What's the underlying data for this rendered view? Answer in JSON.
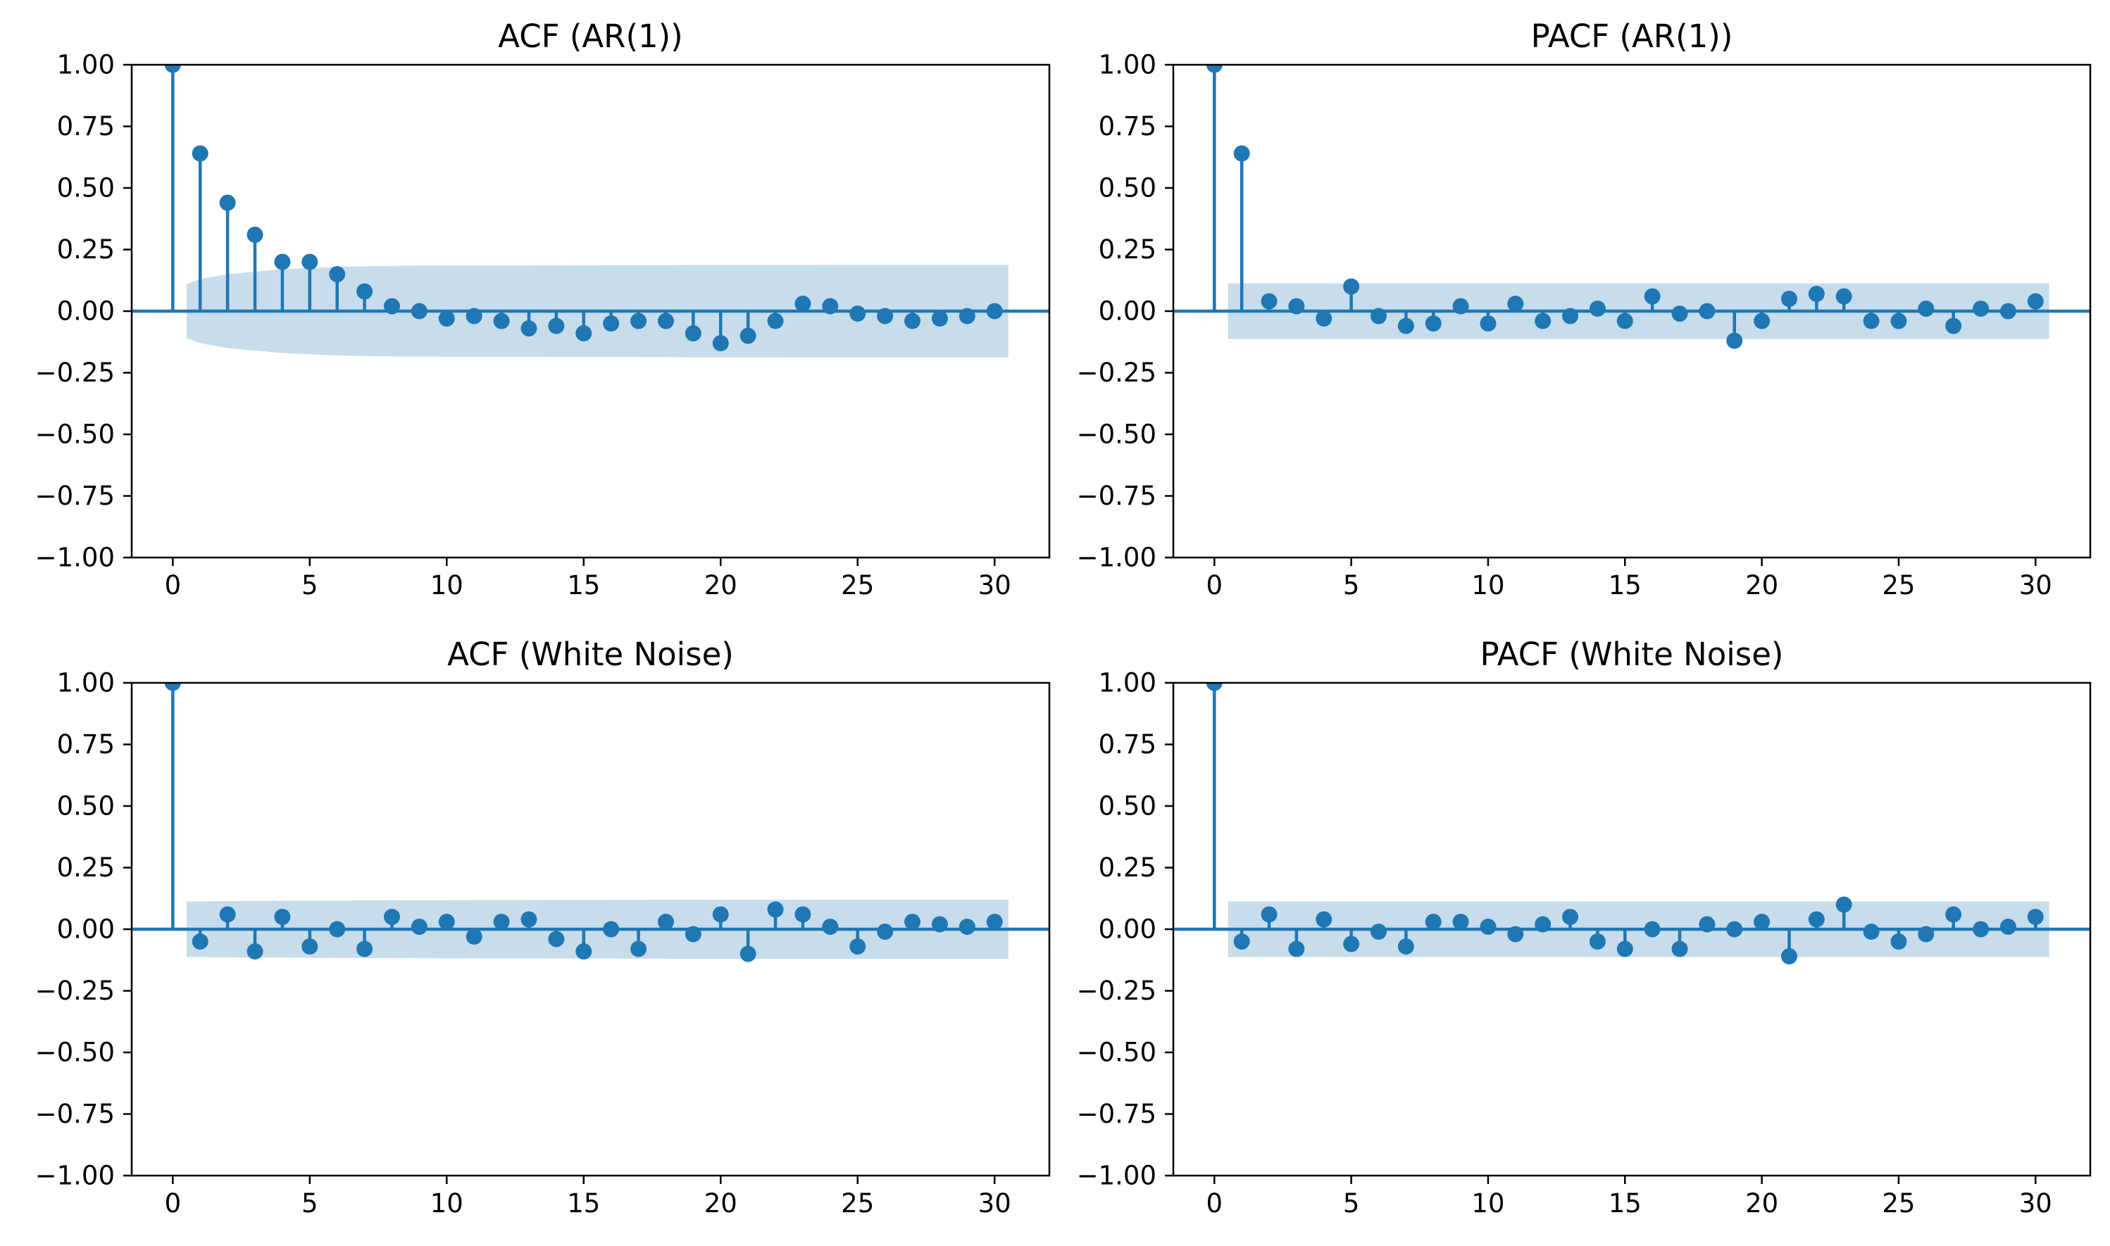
{
  "colors": {
    "series": "#1f77b4",
    "band": "#1f77b4",
    "axes": "#000000",
    "background": "#ffffff"
  },
  "chart_data": [
    {
      "type": "stem",
      "title": "ACF (AR(1))",
      "xlim": [
        -1.5,
        32
      ],
      "ylim": [
        -1.0,
        1.0
      ],
      "xticks": [
        0,
        5,
        10,
        15,
        20,
        25,
        30
      ],
      "yticks": [
        1.0,
        0.75,
        0.5,
        0.25,
        0.0,
        -0.25,
        -0.5,
        -0.75,
        -1.0
      ],
      "ytick_labels": [
        "1.00",
        "0.75",
        "0.50",
        "0.25",
        "0.00",
        "−0.25",
        "−0.50",
        "−0.75",
        "−1.00"
      ],
      "xtick_labels": [
        "0",
        "5",
        "10",
        "15",
        "20",
        "25",
        "30"
      ],
      "x": [
        0,
        1,
        2,
        3,
        4,
        5,
        6,
        7,
        8,
        9,
        10,
        11,
        12,
        13,
        14,
        15,
        16,
        17,
        18,
        19,
        20,
        21,
        22,
        23,
        24,
        25,
        26,
        27,
        28,
        29,
        30
      ],
      "values": [
        1.0,
        0.64,
        0.44,
        0.31,
        0.2,
        0.2,
        0.15,
        0.08,
        0.02,
        0.0,
        -0.03,
        -0.02,
        -0.04,
        -0.07,
        -0.06,
        -0.09,
        -0.05,
        -0.04,
        -0.04,
        -0.09,
        -0.13,
        -0.1,
        -0.04,
        0.03,
        0.02,
        -0.01,
        -0.02,
        -0.04,
        -0.03,
        -0.02,
        0.0
      ],
      "confidence_band": {
        "x": [
          0.5,
          1,
          2,
          3,
          4,
          5,
          6,
          7,
          8,
          10,
          15,
          20,
          25,
          30.5
        ],
        "upper": [
          0.11,
          0.13,
          0.15,
          0.16,
          0.17,
          0.175,
          0.18,
          0.182,
          0.184,
          0.185,
          0.186,
          0.187,
          0.188,
          0.188
        ],
        "lower": [
          -0.11,
          -0.13,
          -0.15,
          -0.16,
          -0.17,
          -0.175,
          -0.18,
          -0.182,
          -0.184,
          -0.185,
          -0.186,
          -0.187,
          -0.188,
          -0.188
        ]
      }
    },
    {
      "type": "stem",
      "title": "PACF (AR(1))",
      "xlim": [
        -1.5,
        32
      ],
      "ylim": [
        -1.0,
        1.0
      ],
      "xticks": [
        0,
        5,
        10,
        15,
        20,
        25,
        30
      ],
      "yticks": [
        1.0,
        0.75,
        0.5,
        0.25,
        0.0,
        -0.25,
        -0.5,
        -0.75,
        -1.0
      ],
      "ytick_labels": [
        "1.00",
        "0.75",
        "0.50",
        "0.25",
        "0.00",
        "−0.25",
        "−0.50",
        "−0.75",
        "−1.00"
      ],
      "xtick_labels": [
        "0",
        "5",
        "10",
        "15",
        "20",
        "25",
        "30"
      ],
      "x": [
        0,
        1,
        2,
        3,
        4,
        5,
        6,
        7,
        8,
        9,
        10,
        11,
        12,
        13,
        14,
        15,
        16,
        17,
        18,
        19,
        20,
        21,
        22,
        23,
        24,
        25,
        26,
        27,
        28,
        29,
        30
      ],
      "values": [
        1.0,
        0.64,
        0.04,
        0.02,
        -0.03,
        0.1,
        -0.02,
        -0.06,
        -0.05,
        0.02,
        -0.05,
        0.03,
        -0.04,
        -0.02,
        0.01,
        -0.04,
        0.06,
        -0.01,
        0.0,
        -0.12,
        -0.04,
        0.05,
        0.07,
        0.06,
        -0.04,
        -0.04,
        0.01,
        -0.06,
        0.01,
        0.0,
        0.04
      ],
      "confidence_band": {
        "x": [
          0.5,
          30.5
        ],
        "upper": [
          0.113,
          0.113
        ],
        "lower": [
          -0.113,
          -0.113
        ]
      }
    },
    {
      "type": "stem",
      "title": "ACF (White Noise)",
      "xlim": [
        -1.5,
        32
      ],
      "ylim": [
        -1.0,
        1.0
      ],
      "xticks": [
        0,
        5,
        10,
        15,
        20,
        25,
        30
      ],
      "yticks": [
        1.0,
        0.75,
        0.5,
        0.25,
        0.0,
        -0.25,
        -0.5,
        -0.75,
        -1.0
      ],
      "ytick_labels": [
        "1.00",
        "0.75",
        "0.50",
        "0.25",
        "0.00",
        "−0.25",
        "−0.50",
        "−0.75",
        "−1.00"
      ],
      "xtick_labels": [
        "0",
        "5",
        "10",
        "15",
        "20",
        "25",
        "30"
      ],
      "x": [
        0,
        1,
        2,
        3,
        4,
        5,
        6,
        7,
        8,
        9,
        10,
        11,
        12,
        13,
        14,
        15,
        16,
        17,
        18,
        19,
        20,
        21,
        22,
        23,
        24,
        25,
        26,
        27,
        28,
        29,
        30
      ],
      "values": [
        1.0,
        -0.05,
        0.06,
        -0.09,
        0.05,
        -0.07,
        0.0,
        -0.08,
        0.05,
        0.01,
        0.03,
        -0.03,
        0.03,
        0.04,
        -0.04,
        -0.09,
        0.0,
        -0.08,
        0.03,
        -0.02,
        0.06,
        -0.1,
        0.08,
        0.06,
        0.01,
        -0.07,
        -0.01,
        0.03,
        0.02,
        0.01,
        0.03
      ],
      "confidence_band": {
        "x": [
          0.5,
          2,
          5,
          10,
          20,
          30.5
        ],
        "upper": [
          0.113,
          0.114,
          0.116,
          0.118,
          0.12,
          0.12
        ],
        "lower": [
          -0.113,
          -0.114,
          -0.116,
          -0.118,
          -0.12,
          -0.12
        ]
      }
    },
    {
      "type": "stem",
      "title": "PACF (White Noise)",
      "xlim": [
        -1.5,
        32
      ],
      "ylim": [
        -1.0,
        1.0
      ],
      "xticks": [
        0,
        5,
        10,
        15,
        20,
        25,
        30
      ],
      "yticks": [
        1.0,
        0.75,
        0.5,
        0.25,
        0.0,
        -0.25,
        -0.5,
        -0.75,
        -1.0
      ],
      "ytick_labels": [
        "1.00",
        "0.75",
        "0.50",
        "0.25",
        "0.00",
        "−0.25",
        "−0.50",
        "−0.75",
        "−1.00"
      ],
      "xtick_labels": [
        "0",
        "5",
        "10",
        "15",
        "20",
        "25",
        "30"
      ],
      "x": [
        0,
        1,
        2,
        3,
        4,
        5,
        6,
        7,
        8,
        9,
        10,
        11,
        12,
        13,
        14,
        15,
        16,
        17,
        18,
        19,
        20,
        21,
        22,
        23,
        24,
        25,
        26,
        27,
        28,
        29,
        30
      ],
      "values": [
        1.0,
        -0.05,
        0.06,
        -0.08,
        0.04,
        -0.06,
        -0.01,
        -0.07,
        0.03,
        0.03,
        0.01,
        -0.02,
        0.02,
        0.05,
        -0.05,
        -0.08,
        0.0,
        -0.08,
        0.02,
        0.0,
        0.03,
        -0.11,
        0.04,
        0.1,
        -0.01,
        -0.05,
        -0.02,
        0.06,
        0.0,
        0.01,
        0.05
      ],
      "confidence_band": {
        "x": [
          0.5,
          30.5
        ],
        "upper": [
          0.113,
          0.113
        ],
        "lower": [
          -0.113,
          -0.113
        ]
      }
    }
  ]
}
